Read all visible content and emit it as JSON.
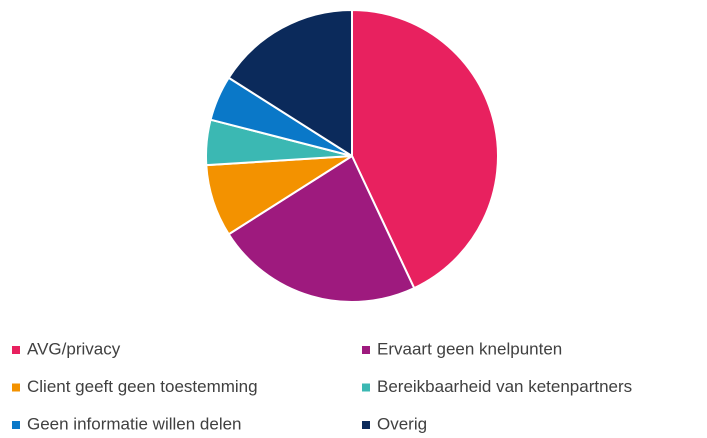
{
  "chart_data": {
    "type": "pie",
    "categories": [
      "AVG/privacy",
      "Ervaart geen knelpunten",
      "Client geeft geen toestemming",
      "Bereikbaarheid van ketenpartners",
      "Geen informatie willen delen",
      "Overig"
    ],
    "values": [
      43,
      23,
      8,
      5,
      5,
      16
    ],
    "colors": [
      "#e8215f",
      "#9e1a7e",
      "#f39200",
      "#3bb8b3",
      "#0a78c8",
      "#0b2a5b"
    ],
    "legend": "bottom"
  }
}
